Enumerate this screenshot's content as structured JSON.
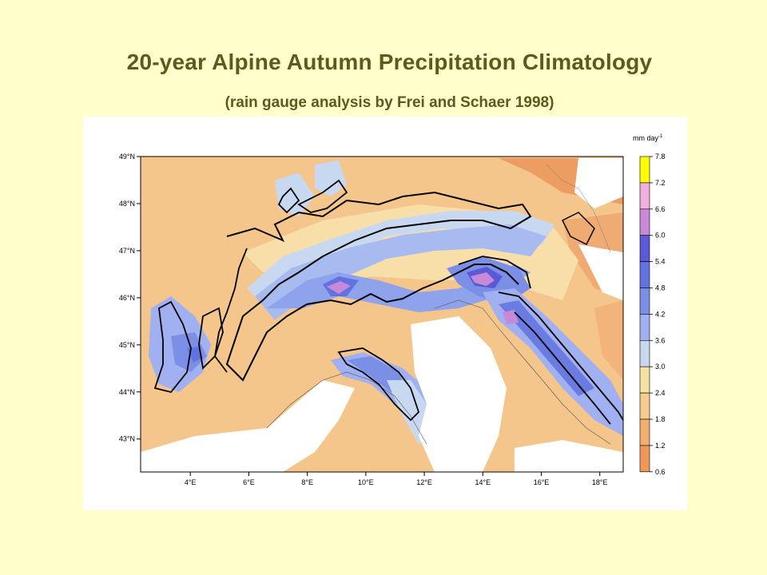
{
  "title": "20-year Alpine Autumn Precipitation Climatology",
  "subtitle": "(rain gauge analysis by Frei and Schaer 1998)",
  "map": {
    "lat_labels": [
      "49°N",
      "48°N",
      "47°N",
      "46°N",
      "45°N",
      "44°N",
      "43°N"
    ],
    "lon_labels": [
      "4°E",
      "6°E",
      "8°E",
      "10°E",
      "12°E",
      "14°E",
      "16°E",
      "18°E"
    ],
    "lat_range": [
      42.3,
      49.0
    ],
    "lon_range": [
      2.3,
      18.8
    ]
  },
  "legend": {
    "unit": "mm day",
    "unit_exp": "-1",
    "levels": [
      "7.8",
      "7.2",
      "6.6",
      "6.0",
      "5.4",
      "4.8",
      "4.2",
      "3.6",
      "3.0",
      "2.4",
      "1.8",
      "1.2",
      "0.6"
    ],
    "colors": [
      "#ffff00",
      "#f0b0e0",
      "#c78ad6",
      "#5a5ad8",
      "#6272e0",
      "#7c8fe6",
      "#a0b0f0",
      "#c8d8f0",
      "#f6e2a0",
      "#f6cd8e",
      "#f2b070",
      "#f0985a"
    ]
  },
  "colors": {
    "background": "#ffffcc",
    "title": "#5e5a1e"
  }
}
